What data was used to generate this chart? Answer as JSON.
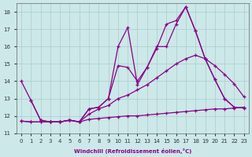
{
  "xlabel": "Windchill (Refroidissement éolien,°C)",
  "bg_color": "#cce8e8",
  "grid_color": "#aacccc",
  "line_color": "#880088",
  "xlim": [
    -0.5,
    23.5
  ],
  "ylim": [
    11,
    18.5
  ],
  "yticks": [
    11,
    12,
    13,
    14,
    15,
    16,
    17,
    18
  ],
  "xticks": [
    0,
    1,
    2,
    3,
    4,
    5,
    6,
    7,
    8,
    9,
    10,
    11,
    12,
    13,
    14,
    15,
    16,
    17,
    18,
    19,
    20,
    21,
    22,
    23
  ],
  "line1_x": [
    0,
    1,
    2,
    3,
    4,
    5,
    6,
    7,
    8,
    9,
    10,
    11,
    12,
    13,
    14,
    15,
    16,
    17,
    18,
    19,
    20,
    21,
    22
  ],
  "line1_y": [
    14.0,
    12.9,
    11.75,
    11.65,
    11.65,
    11.75,
    11.65,
    12.4,
    12.5,
    13.0,
    16.0,
    17.1,
    13.8,
    14.8,
    15.9,
    17.3,
    17.5,
    18.3,
    16.9,
    15.3,
    14.1,
    13.0,
    12.5
  ],
  "line2_x": [
    1,
    2,
    3,
    4,
    5,
    6,
    7,
    8,
    9,
    10,
    11,
    12,
    13,
    14,
    15,
    16,
    17,
    18,
    19,
    20,
    21,
    22,
    23
  ],
  "line2_y": [
    12.9,
    11.75,
    11.65,
    11.65,
    11.75,
    11.65,
    12.4,
    12.5,
    13.0,
    14.9,
    14.8,
    14.0,
    14.8,
    16.0,
    16.0,
    17.3,
    18.3,
    16.9,
    15.3,
    14.1,
    13.0,
    12.5,
    12.45
  ],
  "line3_x": [
    0,
    1,
    2,
    3,
    4,
    5,
    6,
    7,
    8,
    9,
    10,
    11,
    12,
    13,
    14,
    15,
    16,
    17,
    18,
    19,
    20,
    21,
    22,
    23
  ],
  "line3_y": [
    11.7,
    11.65,
    11.65,
    11.65,
    11.65,
    11.75,
    11.65,
    12.1,
    12.4,
    12.6,
    13.0,
    13.2,
    13.5,
    13.8,
    14.2,
    14.6,
    15.0,
    15.3,
    15.5,
    15.3,
    14.9,
    14.4,
    13.85,
    13.1
  ],
  "line4_x": [
    0,
    1,
    2,
    3,
    4,
    5,
    6,
    7,
    8,
    9,
    10,
    11,
    12,
    13,
    14,
    15,
    16,
    17,
    18,
    19,
    20,
    21,
    22,
    23
  ],
  "line4_y": [
    11.7,
    11.65,
    11.65,
    11.65,
    11.65,
    11.75,
    11.65,
    11.8,
    11.85,
    11.9,
    11.95,
    12.0,
    12.0,
    12.05,
    12.1,
    12.15,
    12.2,
    12.25,
    12.3,
    12.35,
    12.4,
    12.4,
    12.45,
    12.5
  ]
}
